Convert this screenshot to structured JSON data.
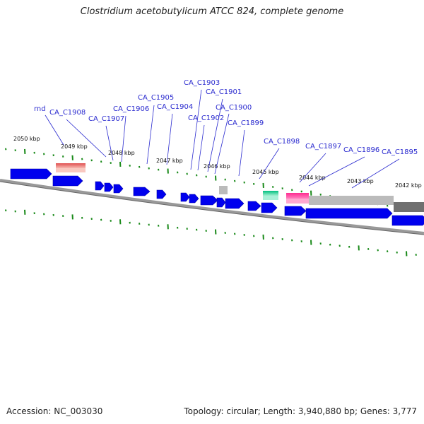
{
  "title": "Clostridium acetobutylicum ATCC 824, complete genome",
  "footer": {
    "accession": "Accession: NC_003030",
    "stats": "Topology: circular; Length: 3,940,880 bp; Genes: 3,777"
  },
  "kbp_labels": [
    "2050 kbp",
    "2049 kbp",
    "2048 kbp",
    "2047 kbp",
    "2046 kbp",
    "2045 kbp",
    "2044 kbp",
    "2043 kbp",
    "2042 kbp"
  ],
  "gene_labels": [
    "rnd",
    "CA_C1908",
    "CA_C1907",
    "CA_C1906",
    "CA_C1905",
    "CA_C1904",
    "CA_C1903",
    "CA_C1902",
    "CA_C1901",
    "CA_C1900",
    "CA_C1899",
    "CA_C1898",
    "CA_C1897",
    "CA_C1896",
    "CA_C1895"
  ],
  "colors": {
    "gene": "#0000ee",
    "rrna": "#f08080",
    "trna": "#00dd99",
    "pink_feature": "#ff1493",
    "gray_feature": "#bbbbbb",
    "dark_gray_feature": "#707070",
    "ticks": "#1a8a1a",
    "backbone": "#888888",
    "labels": "#2a2acf"
  }
}
